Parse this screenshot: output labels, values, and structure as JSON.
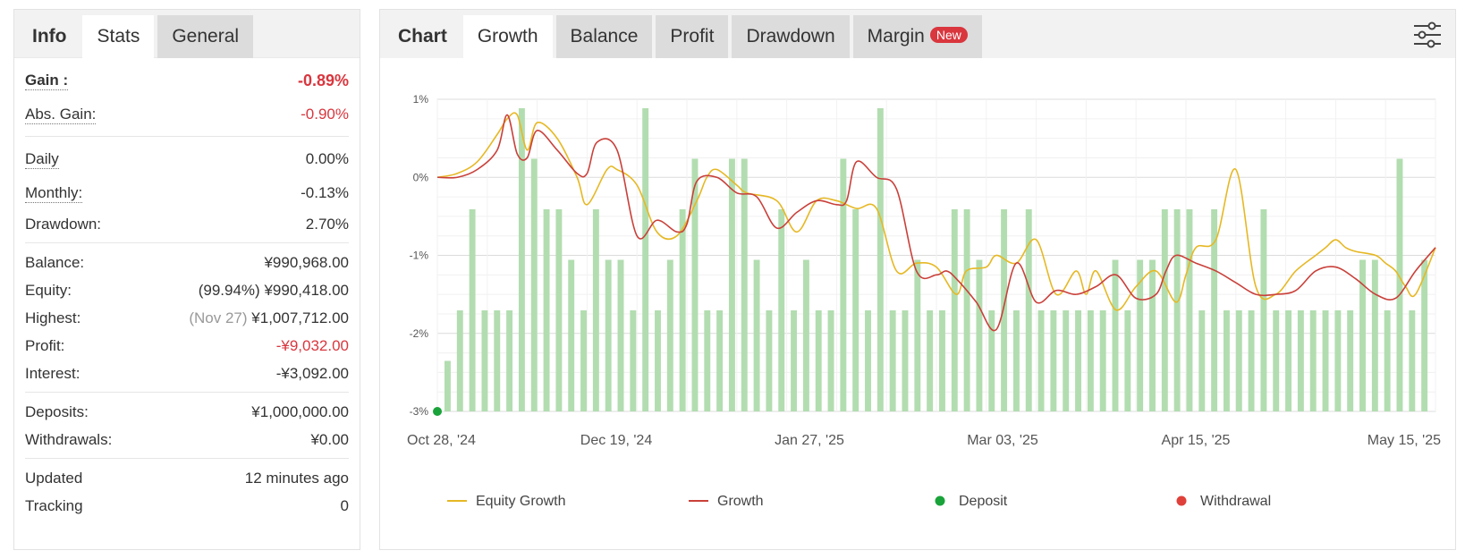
{
  "left": {
    "tabs": [
      "Info",
      "Stats",
      "General"
    ],
    "stats": {
      "gain": {
        "label": "Gain :",
        "value": "-0.89%"
      },
      "abs_gain": {
        "label": "Abs. Gain:",
        "value": "-0.90%"
      },
      "daily": {
        "label": "Daily",
        "value": "0.00%"
      },
      "monthly": {
        "label": "Monthly:",
        "value": "-0.13%"
      },
      "drawdown": {
        "label": "Drawdown:",
        "value": "2.70%"
      },
      "balance": {
        "label": "Balance:",
        "value": "¥990,968.00"
      },
      "equity": {
        "label": "Equity:",
        "pct": "(99.94%)",
        "value": "¥990,418.00"
      },
      "highest": {
        "label": "Highest:",
        "date": "(Nov 27)",
        "value": "¥1,007,712.00"
      },
      "profit": {
        "label": "Profit:",
        "value": "-¥9,032.00"
      },
      "interest": {
        "label": "Interest:",
        "value": "-¥3,092.00"
      },
      "deposits": {
        "label": "Deposits:",
        "value": "¥1,000,000.00"
      },
      "withdrawals": {
        "label": "Withdrawals:",
        "value": "¥0.00"
      },
      "updated": {
        "label": "Updated",
        "value": "12 minutes ago"
      },
      "tracking": {
        "label": "Tracking",
        "value": "0"
      }
    }
  },
  "right": {
    "tabs": [
      "Chart",
      "Growth",
      "Balance",
      "Profit",
      "Drawdown",
      "Margin"
    ],
    "badge": "New",
    "settings_icon": "sliders-icon"
  },
  "chart_data": {
    "type": "line",
    "title": "",
    "ylim": [
      -3,
      1
    ],
    "yticks": [
      "1%",
      "0%",
      "-1%",
      "-2%",
      "-3%"
    ],
    "xticks": [
      "Oct 28, '24",
      "Dec 19, '24",
      "Jan 27, '25",
      "Mar 03, '25",
      "Apr 15, '25",
      "May 15, '25"
    ],
    "grid": true,
    "legend_position": "bottom",
    "legend": [
      {
        "name": "Equity Growth",
        "color": "#e6b824",
        "kind": "line"
      },
      {
        "name": "Growth",
        "color": "#c9403a",
        "kind": "line"
      },
      {
        "name": "Deposit",
        "color": "#1aa33a",
        "kind": "dot"
      },
      {
        "name": "Withdrawal",
        "color": "#e0403a",
        "kind": "dot"
      }
    ],
    "bar_color": "#b2ddb0",
    "bars": [
      1,
      2,
      4,
      2,
      2,
      2,
      6,
      5,
      4,
      4,
      3,
      2,
      4,
      3,
      3,
      2,
      6,
      2,
      3,
      4,
      5,
      2,
      2,
      5,
      5,
      3,
      2,
      4,
      2,
      3,
      2,
      2,
      5,
      4,
      2,
      6,
      2,
      2,
      3,
      2,
      2,
      4,
      4,
      3,
      2,
      4,
      2,
      4,
      2,
      2,
      2,
      2,
      2,
      2,
      3,
      2,
      3,
      3,
      4,
      4,
      4,
      2,
      4,
      2,
      2,
      2,
      4,
      2,
      2,
      2,
      2,
      2,
      2,
      2,
      3,
      3,
      2,
      5,
      2,
      3
    ],
    "series": [
      {
        "name": "Equity Growth",
        "color": "#e6b824",
        "x": [
          0,
          2,
          4,
          6,
          7,
          8,
          9,
          10,
          12,
          14,
          15,
          17,
          18,
          20,
          22,
          24,
          26,
          27,
          28,
          30,
          31,
          34,
          36,
          38,
          40,
          42,
          44,
          46,
          48,
          50,
          52,
          53,
          55,
          56,
          58,
          60,
          62,
          64,
          65,
          66,
          68,
          70,
          72,
          74,
          75,
          76,
          78,
          80,
          82,
          84,
          86,
          88,
          89,
          90,
          91,
          92,
          94,
          95,
          96,
          97,
          98,
          100
        ],
        "values": [
          0.0,
          0.05,
          0.2,
          0.55,
          0.75,
          0.8,
          0.35,
          0.7,
          0.5,
          0.0,
          -0.35,
          0.1,
          0.1,
          -0.1,
          -0.7,
          -0.75,
          -0.3,
          0.0,
          0.1,
          -0.1,
          -0.2,
          -0.3,
          -0.7,
          -0.3,
          -0.3,
          -0.4,
          -0.4,
          -1.2,
          -1.1,
          -1.15,
          -1.5,
          -1.2,
          -1.15,
          -1.0,
          -1.1,
          -0.8,
          -1.5,
          -1.2,
          -1.5,
          -1.2,
          -1.7,
          -1.4,
          -1.2,
          -1.6,
          -1.25,
          -0.9,
          -0.8,
          0.1,
          -1.4,
          -1.5,
          -1.2,
          -1.0,
          -0.9,
          -0.8,
          -0.9,
          -0.95,
          -1.0,
          -1.1,
          -1.2,
          -1.4,
          -1.5,
          -0.9
        ],
        "smooth": true
      },
      {
        "name": "Growth",
        "color": "#c9403a",
        "x": [
          0,
          2,
          4,
          6,
          7,
          8,
          9,
          10,
          12,
          14,
          15,
          16,
          18,
          20,
          22,
          24,
          25,
          26,
          28,
          30,
          32,
          34,
          36,
          38,
          40,
          41,
          42,
          44,
          46,
          48,
          50,
          51,
          52,
          54,
          56,
          58,
          60,
          62,
          64,
          66,
          68,
          70,
          72,
          73,
          74,
          76,
          78,
          80,
          82,
          84,
          86,
          88,
          90,
          92,
          94,
          96,
          98,
          100
        ],
        "values": [
          0.0,
          0.0,
          0.1,
          0.35,
          0.8,
          0.3,
          0.25,
          0.6,
          0.35,
          0.05,
          0.05,
          0.45,
          0.35,
          -0.75,
          -0.55,
          -0.7,
          -0.6,
          -0.05,
          0.0,
          -0.2,
          -0.25,
          -0.65,
          -0.45,
          -0.3,
          -0.35,
          -0.3,
          0.2,
          0.0,
          -0.15,
          -1.2,
          -1.25,
          -1.2,
          -1.3,
          -1.6,
          -1.95,
          -1.1,
          -1.6,
          -1.45,
          -1.5,
          -1.4,
          -1.25,
          -1.55,
          -1.5,
          -1.2,
          -1.0,
          -1.1,
          -1.2,
          -1.35,
          -1.5,
          -1.5,
          -1.45,
          -1.2,
          -1.15,
          -1.3,
          -1.5,
          -1.55,
          -1.2,
          -0.9
        ],
        "smooth": true
      }
    ],
    "markers": [
      {
        "series": "Deposit",
        "x": 0,
        "y": -3,
        "color": "#1aa33a"
      }
    ]
  }
}
